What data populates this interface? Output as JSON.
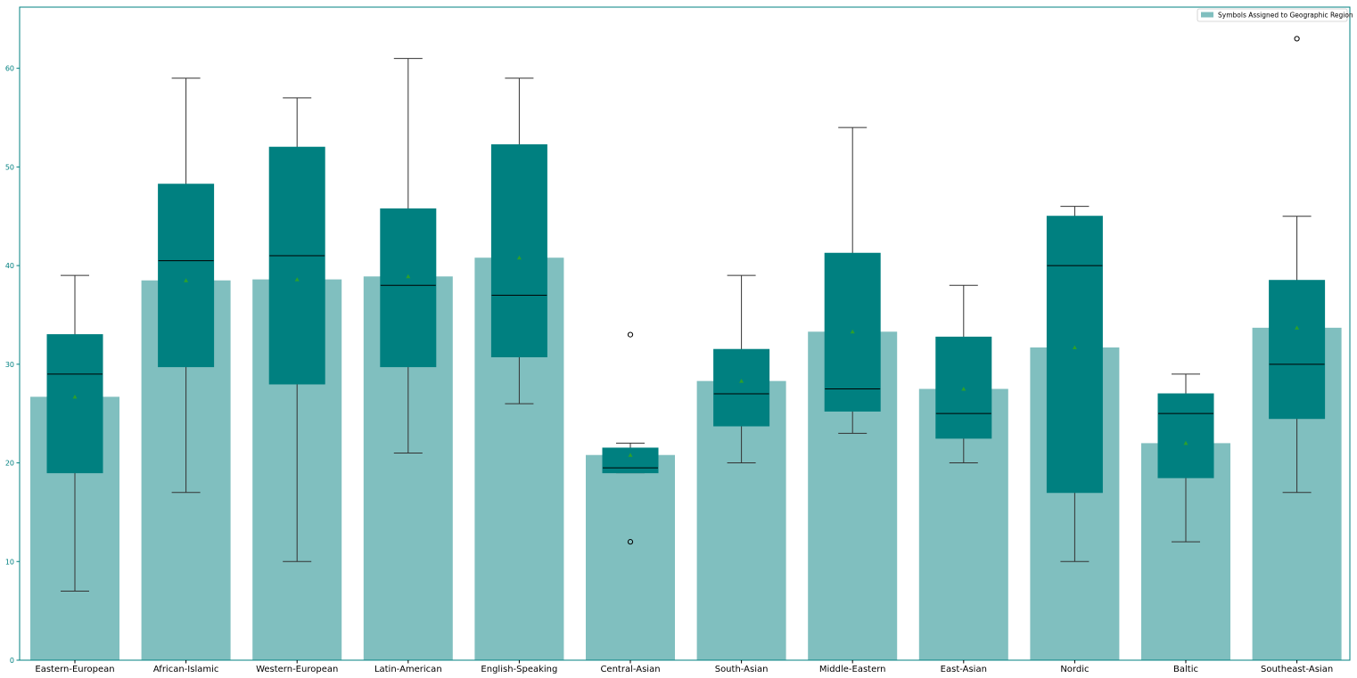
{
  "chart_data": {
    "type": "bar",
    "overlay": "boxplot",
    "categories": [
      "Eastern-European",
      "African-Islamic",
      "Western-European",
      "Latin-American",
      "English-Speaking",
      "Central-Asian",
      "South-Asian",
      "Middle-Eastern",
      "East-Asian",
      "Nordic",
      "Baltic",
      "Southeast-Asian"
    ],
    "series": [
      {
        "name": "Symbols Assigned to Geographic Region",
        "type": "bar",
        "values": [
          26.7,
          38.5,
          38.6,
          38.9,
          40.8,
          20.8,
          28.3,
          33.3,
          27.5,
          31.7,
          22.0,
          33.7
        ]
      }
    ],
    "boxes": [
      {
        "category": "Eastern-European",
        "whisker_low": 7,
        "q1": 19,
        "median": 29,
        "q3": 33,
        "whisker_high": 39,
        "mean": 26.7,
        "outliers": []
      },
      {
        "category": "African-Islamic",
        "whisker_low": 17,
        "q1": 29.75,
        "median": 40.5,
        "q3": 48.25,
        "whisker_high": 59,
        "mean": 38.5,
        "outliers": []
      },
      {
        "category": "Western-European",
        "whisker_low": 10,
        "q1": 28,
        "median": 41,
        "q3": 52,
        "whisker_high": 57,
        "mean": 38.6,
        "outliers": []
      },
      {
        "category": "Latin-American",
        "whisker_low": 21,
        "q1": 29.75,
        "median": 38,
        "q3": 45.75,
        "whisker_high": 61,
        "mean": 38.9,
        "outliers": []
      },
      {
        "category": "English-Speaking",
        "whisker_low": 26,
        "q1": 30.75,
        "median": 37,
        "q3": 52.25,
        "whisker_high": 59,
        "mean": 40.8,
        "outliers": []
      },
      {
        "category": "Central-Asian",
        "whisker_low": 19,
        "q1": 19,
        "median": 19.5,
        "q3": 21.5,
        "whisker_high": 22,
        "mean": 20.8,
        "outliers": [
          33,
          12
        ]
      },
      {
        "category": "South-Asian",
        "whisker_low": 20,
        "q1": 23.75,
        "median": 27,
        "q3": 31.5,
        "whisker_high": 39,
        "mean": 28.3,
        "outliers": []
      },
      {
        "category": "Middle-Eastern",
        "whisker_low": 23,
        "q1": 25.25,
        "median": 27.5,
        "q3": 41.25,
        "whisker_high": 54,
        "mean": 33.3,
        "outliers": []
      },
      {
        "category": "East-Asian",
        "whisker_low": 20,
        "q1": 22.5,
        "median": 25,
        "q3": 32.75,
        "whisker_high": 38,
        "mean": 27.5,
        "outliers": []
      },
      {
        "category": "Nordic",
        "whisker_low": 10,
        "q1": 17,
        "median": 40,
        "q3": 45,
        "whisker_high": 46,
        "mean": 31.7,
        "outliers": []
      },
      {
        "category": "Baltic",
        "whisker_low": 12,
        "q1": 18.5,
        "median": 25,
        "q3": 27,
        "whisker_high": 29,
        "mean": 22.0,
        "outliers": []
      },
      {
        "category": "Southeast-Asian",
        "whisker_low": 17,
        "q1": 24.5,
        "median": 30,
        "q3": 38.5,
        "whisker_high": 45,
        "mean": 33.7,
        "outliers": [
          63
        ]
      }
    ],
    "yticks": [
      0,
      10,
      20,
      30,
      40,
      50,
      60
    ],
    "ylim": [
      0,
      66.2
    ],
    "xlabel": "",
    "ylabel": "",
    "title": "",
    "grid": false,
    "legend_position": "top-right",
    "colors": {
      "bar": "#80bfbf",
      "box": "#008080",
      "median": "#000000",
      "whisker": "#333333",
      "mean_marker": "#2ca02c",
      "axis_spine": "#008080",
      "ytick_label": "#008080"
    }
  }
}
